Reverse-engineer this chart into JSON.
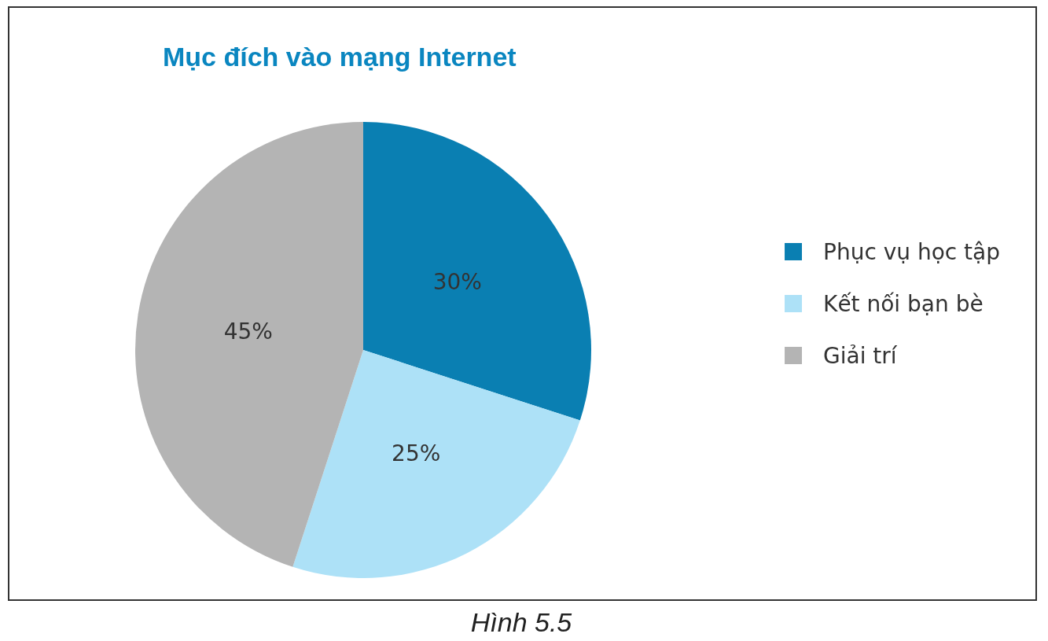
{
  "chart_data": {
    "type": "pie",
    "title": "Mục đích vào mạng Internet",
    "categories": [
      "Phục vụ học tập",
      "Kết nối bạn bè",
      "Giải trí"
    ],
    "values": [
      30,
      25,
      45
    ],
    "colors": [
      "#0a7fb2",
      "#ade1f7",
      "#b4b4b4"
    ],
    "value_labels": [
      "30%",
      "25%",
      "45%"
    ],
    "legend": "right",
    "annotations": [
      "Hình 5.5"
    ]
  }
}
